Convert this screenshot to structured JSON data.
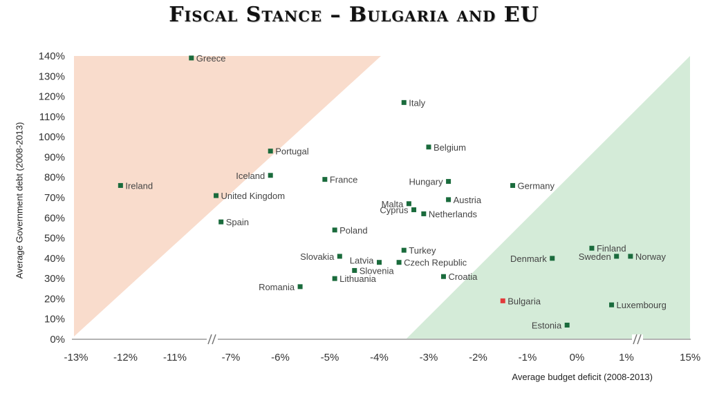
{
  "title": "Fiscal Stance – Bulgaria and EU",
  "chart_data": {
    "type": "scatter",
    "title": "Fiscal Stance – Bulgaria and EU",
    "xlabel": "Average budget deficit (2008-2013)",
    "ylabel": "Average Government debt (2008-2013)",
    "x_tick_labels": [
      "-13%",
      "-12%",
      "-11%",
      "-7%",
      "-6%",
      "-5%",
      "-4%",
      "-3%",
      "-2%",
      "-1%",
      "0%",
      "1%",
      "15%"
    ],
    "y_tick_labels": [
      "0%",
      "10%",
      "20%",
      "30%",
      "40%",
      "50%",
      "60%",
      "70%",
      "80%",
      "90%",
      "100%",
      "110%",
      "120%",
      "130%",
      "140%"
    ],
    "x_axis_breaks": [
      "between -11% and -7%",
      "between 1% and 15%"
    ],
    "ylim": [
      0,
      140
    ],
    "colors": {
      "point": "#1a6b3c",
      "highlight": "#e23b3b",
      "red_zone": "#f9dccc",
      "green_zone": "#d4ebd8"
    },
    "points": [
      {
        "label": "Greece",
        "x": -7.8,
        "y": 139
      },
      {
        "label": "Italy",
        "x": -3.5,
        "y": 117
      },
      {
        "label": "Portugal",
        "x": -6.2,
        "y": 93
      },
      {
        "label": "Belgium",
        "x": -3.0,
        "y": 95
      },
      {
        "label": "Iceland",
        "x": -6.2,
        "y": 81
      },
      {
        "label": "France",
        "x": -5.1,
        "y": 79
      },
      {
        "label": "Hungary",
        "x": -2.6,
        "y": 78
      },
      {
        "label": "Germany",
        "x": -1.3,
        "y": 76
      },
      {
        "label": "Ireland",
        "x": -12.1,
        "y": 76
      },
      {
        "label": "United Kingdom",
        "x": -7.3,
        "y": 71
      },
      {
        "label": "Austria",
        "x": -2.6,
        "y": 69
      },
      {
        "label": "Malta",
        "x": -3.4,
        "y": 67
      },
      {
        "label": "Cyprus",
        "x": -3.3,
        "y": 64
      },
      {
        "label": "Netherlands",
        "x": -3.1,
        "y": 62
      },
      {
        "label": "Spain",
        "x": -7.2,
        "y": 58
      },
      {
        "label": "Poland",
        "x": -4.9,
        "y": 54
      },
      {
        "label": "Finland",
        "x": 0.3,
        "y": 45
      },
      {
        "label": "Turkey",
        "x": -3.5,
        "y": 44
      },
      {
        "label": "Sweden",
        "x": 0.8,
        "y": 41
      },
      {
        "label": "Norway",
        "x": 1.3,
        "y": 41
      },
      {
        "label": "Slovakia",
        "x": -4.8,
        "y": 41
      },
      {
        "label": "Denmark",
        "x": -0.5,
        "y": 40
      },
      {
        "label": "Latvia",
        "x": -4.0,
        "y": 38
      },
      {
        "label": "Czech Republic",
        "x": -3.6,
        "y": 38
      },
      {
        "label": "Slovenia",
        "x": -4.5,
        "y": 34
      },
      {
        "label": "Croatia",
        "x": -2.7,
        "y": 31
      },
      {
        "label": "Lithuania",
        "x": -4.9,
        "y": 30
      },
      {
        "label": "Romania",
        "x": -5.6,
        "y": 26
      },
      {
        "label": "Bulgaria",
        "x": -1.5,
        "y": 19,
        "highlight": true
      },
      {
        "label": "Luxembourg",
        "x": 0.7,
        "y": 17
      },
      {
        "label": "Estonia",
        "x": -0.2,
        "y": 7
      }
    ]
  }
}
